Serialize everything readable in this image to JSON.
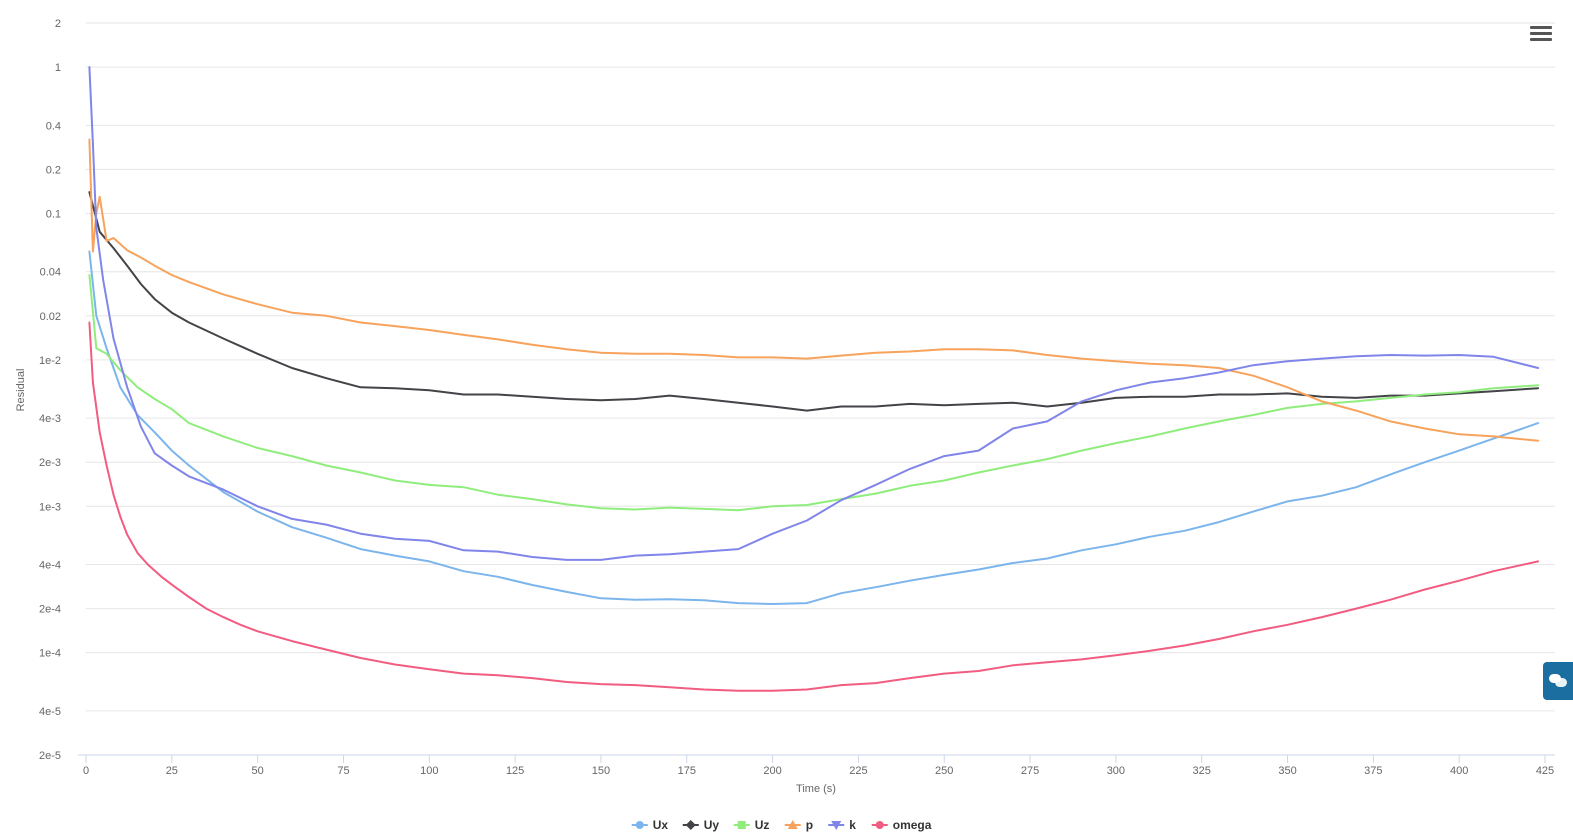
{
  "chart_data": {
    "type": "line",
    "xlabel": "Time (s)",
    "ylabel": "Residual",
    "y_scale": "log",
    "xlim": [
      0,
      425
    ],
    "ylim": [
      2e-05,
      2
    ],
    "x_ticks": [
      0,
      25,
      50,
      75,
      100,
      125,
      150,
      175,
      200,
      225,
      250,
      275,
      300,
      325,
      350,
      375,
      400,
      425
    ],
    "y_ticks": [
      {
        "value": 2,
        "label": "2"
      },
      {
        "value": 1,
        "label": "1"
      },
      {
        "value": 0.4,
        "label": "0.4"
      },
      {
        "value": 0.2,
        "label": "0.2"
      },
      {
        "value": 0.1,
        "label": "0.1"
      },
      {
        "value": 0.04,
        "label": "0.04"
      },
      {
        "value": 0.02,
        "label": "0.02"
      },
      {
        "value": 0.01,
        "label": "1e-2"
      },
      {
        "value": 0.004,
        "label": "4e-3"
      },
      {
        "value": 0.002,
        "label": "2e-3"
      },
      {
        "value": 0.001,
        "label": "1e-3"
      },
      {
        "value": 0.0004,
        "label": "4e-4"
      },
      {
        "value": 0.0002,
        "label": "2e-4"
      },
      {
        "value": 0.0001,
        "label": "1e-4"
      },
      {
        "value": 4e-05,
        "label": "4e-5"
      },
      {
        "value": 2e-05,
        "label": "2e-5"
      }
    ],
    "grid": true,
    "legend_position": "bottom-center",
    "series": [
      {
        "name": "Ux",
        "color": "#7cb5ec",
        "marker": "circle",
        "x": [
          1,
          3,
          6,
          10,
          15,
          20,
          25,
          30,
          40,
          50,
          60,
          70,
          80,
          90,
          100,
          110,
          120,
          130,
          140,
          150,
          160,
          170,
          180,
          190,
          200,
          210,
          220,
          230,
          240,
          250,
          260,
          270,
          280,
          290,
          300,
          310,
          320,
          330,
          340,
          350,
          360,
          370,
          380,
          390,
          400,
          410,
          423
        ],
        "y": [
          0.055,
          0.02,
          0.012,
          0.0065,
          0.0042,
          0.0032,
          0.0024,
          0.0019,
          0.00125,
          0.00092,
          0.00072,
          0.00061,
          0.00051,
          0.00046,
          0.00042,
          0.00036,
          0.00033,
          0.00029,
          0.00026,
          0.000235,
          0.00023,
          0.000232,
          0.000228,
          0.000218,
          0.000215,
          0.000218,
          0.000255,
          0.00028,
          0.00031,
          0.00034,
          0.00037,
          0.00041,
          0.00044,
          0.0005,
          0.00055,
          0.00062,
          0.00068,
          0.00078,
          0.00092,
          0.00108,
          0.00118,
          0.00135,
          0.00165,
          0.002,
          0.0024,
          0.0029,
          0.0037
        ]
      },
      {
        "name": "Uy",
        "color": "#434348",
        "marker": "diamond",
        "x": [
          1,
          4,
          8,
          12,
          16,
          20,
          25,
          30,
          40,
          50,
          60,
          70,
          80,
          90,
          100,
          110,
          120,
          130,
          140,
          150,
          160,
          170,
          180,
          190,
          200,
          210,
          220,
          230,
          240,
          250,
          260,
          270,
          280,
          290,
          300,
          310,
          320,
          330,
          340,
          350,
          360,
          370,
          380,
          390,
          400,
          410,
          423
        ],
        "y": [
          0.14,
          0.075,
          0.058,
          0.044,
          0.033,
          0.026,
          0.021,
          0.018,
          0.014,
          0.011,
          0.0088,
          0.0075,
          0.0065,
          0.0064,
          0.0062,
          0.0058,
          0.0058,
          0.0056,
          0.0054,
          0.0053,
          0.0054,
          0.0057,
          0.0054,
          0.0051,
          0.0048,
          0.0045,
          0.0048,
          0.0048,
          0.005,
          0.0049,
          0.005,
          0.0051,
          0.0048,
          0.0051,
          0.0055,
          0.0056,
          0.0056,
          0.0058,
          0.0058,
          0.0059,
          0.0056,
          0.0055,
          0.0057,
          0.0057,
          0.0059,
          0.0061,
          0.0064
        ]
      },
      {
        "name": "Uz",
        "color": "#90ed7d",
        "marker": "square",
        "x": [
          1,
          3,
          6,
          10,
          15,
          20,
          25,
          30,
          40,
          50,
          60,
          70,
          80,
          90,
          100,
          110,
          120,
          130,
          140,
          150,
          160,
          170,
          180,
          190,
          200,
          210,
          220,
          230,
          240,
          250,
          260,
          270,
          280,
          290,
          300,
          310,
          320,
          330,
          340,
          350,
          360,
          370,
          380,
          390,
          400,
          410,
          423
        ],
        "y": [
          0.038,
          0.012,
          0.011,
          0.0085,
          0.0065,
          0.0054,
          0.0046,
          0.0037,
          0.003,
          0.0025,
          0.0022,
          0.0019,
          0.0017,
          0.0015,
          0.0014,
          0.00135,
          0.0012,
          0.00112,
          0.00103,
          0.00097,
          0.00095,
          0.00098,
          0.00096,
          0.00094,
          0.001,
          0.00102,
          0.00112,
          0.00122,
          0.00138,
          0.0015,
          0.0017,
          0.0019,
          0.0021,
          0.0024,
          0.0027,
          0.003,
          0.0034,
          0.0038,
          0.0042,
          0.0047,
          0.005,
          0.0052,
          0.0055,
          0.0058,
          0.006,
          0.0064,
          0.0067
        ]
      },
      {
        "name": "p",
        "color": "#f7a35c",
        "marker": "triangle",
        "x": [
          1,
          2,
          3,
          4,
          6,
          8,
          12,
          16,
          20,
          25,
          30,
          40,
          50,
          60,
          70,
          80,
          90,
          100,
          110,
          120,
          130,
          140,
          150,
          160,
          170,
          180,
          190,
          200,
          210,
          220,
          230,
          240,
          250,
          260,
          270,
          280,
          290,
          300,
          310,
          320,
          330,
          340,
          350,
          360,
          370,
          380,
          390,
          400,
          410,
          423
        ],
        "y": [
          0.32,
          0.055,
          0.1,
          0.13,
          0.065,
          0.068,
          0.056,
          0.05,
          0.044,
          0.038,
          0.034,
          0.028,
          0.024,
          0.021,
          0.02,
          0.018,
          0.017,
          0.016,
          0.0148,
          0.0138,
          0.0127,
          0.0118,
          0.0112,
          0.011,
          0.011,
          0.0108,
          0.0104,
          0.0104,
          0.0102,
          0.0107,
          0.0112,
          0.0114,
          0.0118,
          0.0118,
          0.0116,
          0.0108,
          0.0102,
          0.0098,
          0.0094,
          0.0092,
          0.0088,
          0.0078,
          0.0065,
          0.0052,
          0.0045,
          0.0038,
          0.0034,
          0.0031,
          0.003,
          0.0028
        ]
      },
      {
        "name": "k",
        "color": "#8085e9",
        "marker": "triangle-down",
        "x": [
          1,
          2,
          3,
          5,
          8,
          12,
          16,
          20,
          25,
          30,
          40,
          50,
          60,
          70,
          80,
          90,
          100,
          110,
          120,
          130,
          140,
          150,
          160,
          170,
          180,
          190,
          200,
          210,
          220,
          230,
          240,
          250,
          260,
          270,
          280,
          290,
          300,
          310,
          320,
          330,
          340,
          350,
          360,
          370,
          380,
          390,
          400,
          410,
          423
        ],
        "y": [
          1.0,
          0.3,
          0.08,
          0.035,
          0.014,
          0.0065,
          0.0035,
          0.0023,
          0.0019,
          0.0016,
          0.0013,
          0.001,
          0.00082,
          0.00075,
          0.00065,
          0.0006,
          0.00058,
          0.0005,
          0.00049,
          0.00045,
          0.00043,
          0.00043,
          0.00046,
          0.00047,
          0.00049,
          0.00051,
          0.00065,
          0.0008,
          0.0011,
          0.0014,
          0.0018,
          0.0022,
          0.0024,
          0.0034,
          0.0038,
          0.0052,
          0.0062,
          0.007,
          0.0075,
          0.0082,
          0.0092,
          0.0098,
          0.0102,
          0.0106,
          0.0108,
          0.0107,
          0.0108,
          0.0105,
          0.0088
        ]
      },
      {
        "name": "omega",
        "color": "#f15c80",
        "marker": "circle",
        "x": [
          1,
          2,
          4,
          6,
          8,
          10,
          12,
          15,
          18,
          22,
          26,
          30,
          35,
          40,
          45,
          50,
          60,
          70,
          80,
          90,
          100,
          110,
          120,
          130,
          140,
          150,
          160,
          170,
          180,
          190,
          200,
          210,
          220,
          230,
          240,
          250,
          260,
          270,
          280,
          290,
          300,
          310,
          320,
          330,
          340,
          350,
          360,
          370,
          380,
          390,
          400,
          410,
          423
        ],
        "y": [
          0.018,
          0.007,
          0.0032,
          0.0019,
          0.0012,
          0.00085,
          0.00064,
          0.00048,
          0.0004,
          0.00033,
          0.00028,
          0.00024,
          0.0002,
          0.000175,
          0.000155,
          0.00014,
          0.00012,
          0.000105,
          9.2e-05,
          8.3e-05,
          7.7e-05,
          7.2e-05,
          7e-05,
          6.7e-05,
          6.3e-05,
          6.1e-05,
          6e-05,
          5.8e-05,
          5.6e-05,
          5.5e-05,
          5.5e-05,
          5.6e-05,
          6e-05,
          6.2e-05,
          6.7e-05,
          7.2e-05,
          7.5e-05,
          8.2e-05,
          8.6e-05,
          9e-05,
          9.6e-05,
          0.000103,
          0.000112,
          0.000124,
          0.00014,
          0.000155,
          0.000175,
          0.0002,
          0.00023,
          0.00027,
          0.00031,
          0.00036,
          0.00042
        ]
      }
    ]
  }
}
